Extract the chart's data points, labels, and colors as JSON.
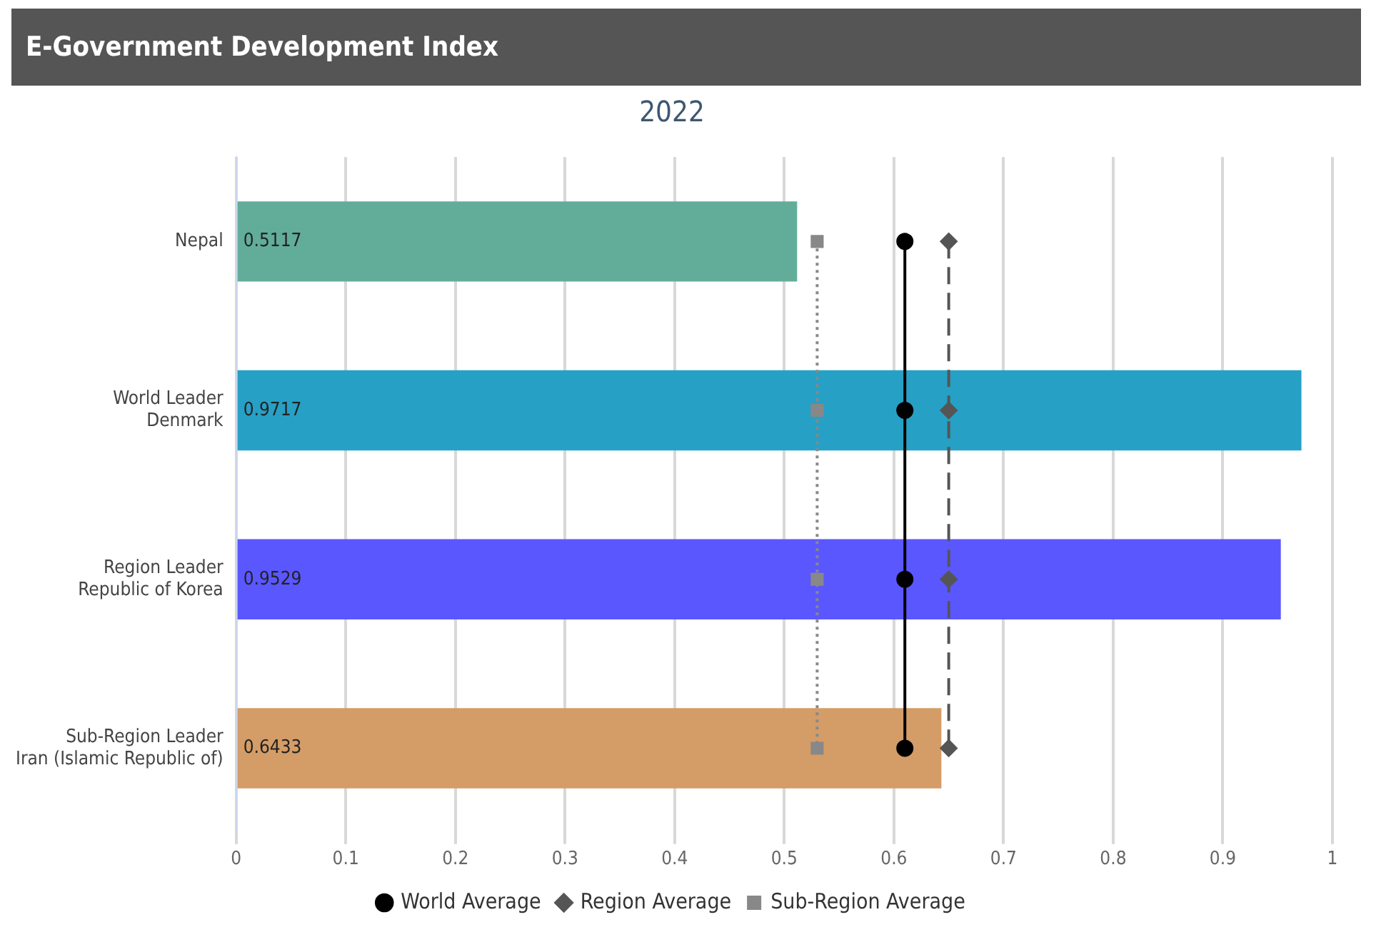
{
  "chart_data": {
    "type": "bar",
    "orientation": "horizontal",
    "title": "E-Government Development Index",
    "subtitle": "2022",
    "categories": [
      "Nepal",
      "World Leader\nDenmark",
      "Region Leader\nRepublic of Korea",
      "Sub-Region Leader\nIran (Islamic Republic of)"
    ],
    "series": [
      {
        "values": [
          0.5117,
          0.9717,
          0.9529,
          0.6433
        ],
        "value_labels": [
          "0.5117",
          "0.9717",
          "0.9529",
          "0.6433"
        ],
        "colors": [
          "#62ad9a",
          "#27a0c6",
          "#5a57ff",
          "#d49c67"
        ]
      },
      {
        "type": "line",
        "name": "World Average",
        "color": "#000000",
        "values": [
          0.61,
          0.61,
          0.61,
          0.61
        ],
        "marker": "circle",
        "line_style": "solid"
      },
      {
        "type": "line",
        "name": "Region Average",
        "color": "#555555",
        "values": [
          0.65,
          0.65,
          0.65,
          0.65
        ],
        "marker": "diamond",
        "line_style": "dashed"
      },
      {
        "type": "line",
        "name": "Sub-Region Average",
        "color": "#888888",
        "values": [
          0.53,
          0.53,
          0.53,
          0.53
        ],
        "marker": "square",
        "line_style": "dotted"
      }
    ],
    "xlim": [
      0,
      1
    ],
    "xticks": [
      0,
      0.1,
      0.2,
      0.3,
      0.4,
      0.5,
      0.6,
      0.7,
      0.8,
      0.9,
      1
    ],
    "grid": "x",
    "legend": "bottom"
  }
}
